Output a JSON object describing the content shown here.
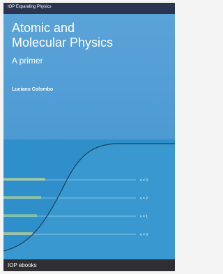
{
  "header": {
    "series": "IOP Expanding Physics"
  },
  "title_lines": [
    "Atomic and",
    "Molecular Physics"
  ],
  "subtitle": "A primer",
  "author": "Luciano Colombo",
  "levels": [
    "v = 3",
    "v = 2",
    "v = 1",
    "v = 0"
  ],
  "footer": {
    "brand": "IOP ebooks"
  }
}
